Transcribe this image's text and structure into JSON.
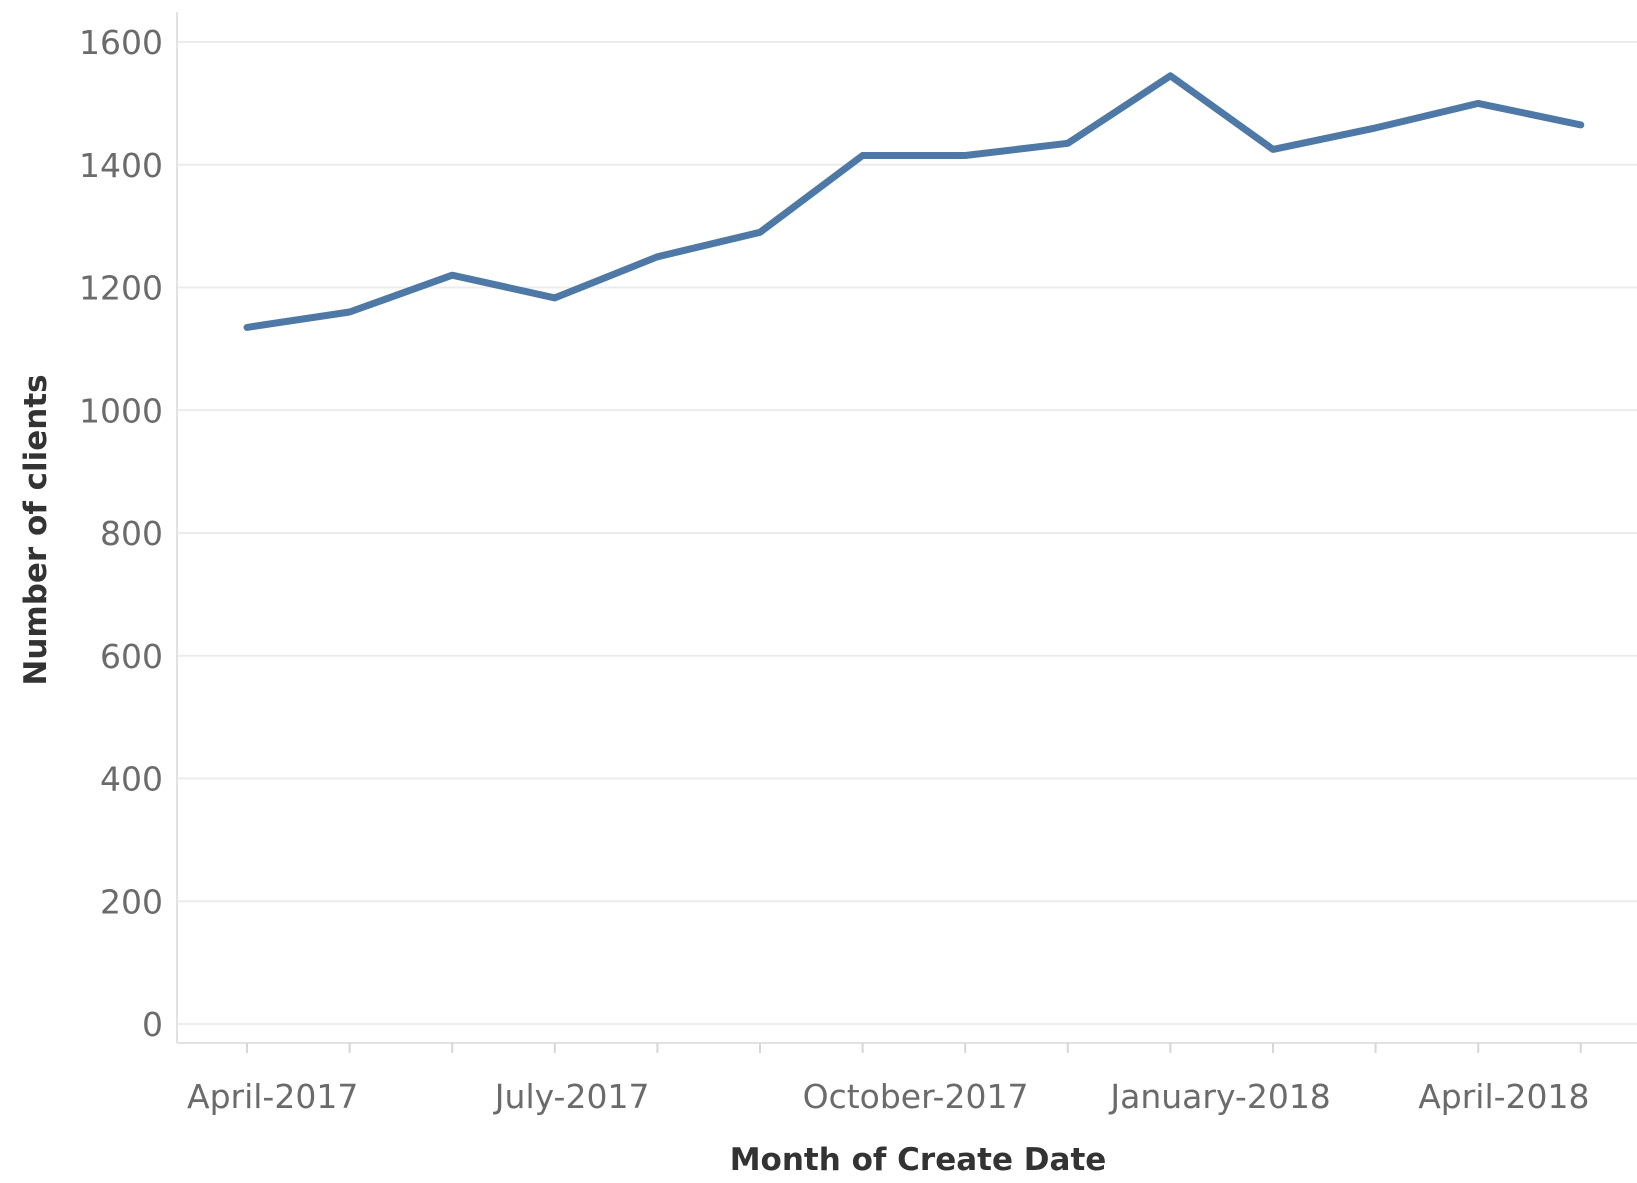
{
  "chart_data": {
    "type": "line",
    "xlabel": "Month of Create Date",
    "ylabel": "Number of clients",
    "x": [
      "2017-04",
      "2017-05",
      "2017-06",
      "2017-07",
      "2017-08",
      "2017-09",
      "2017-10",
      "2017-11",
      "2017-12",
      "2018-01",
      "2018-02",
      "2018-03",
      "2018-04",
      "2018-05"
    ],
    "x_tick_labels": [
      {
        "x": "2017-04",
        "label": "April-2017"
      },
      {
        "x": "2017-07",
        "label": "July-2017"
      },
      {
        "x": "2017-10",
        "label": "October-2017"
      },
      {
        "x": "2018-01",
        "label": "January-2018"
      },
      {
        "x": "2018-04",
        "label": "April-2018"
      }
    ],
    "y_ticks": [
      0,
      200,
      400,
      600,
      800,
      1000,
      1200,
      1400,
      1600
    ],
    "ylim": [
      0,
      1620
    ],
    "grid": true,
    "series": [
      {
        "values": [
          1135,
          1160,
          1220,
          1183,
          1250,
          1290,
          1415,
          1415,
          1435,
          1545,
          1425,
          1460,
          1500,
          1465
        ]
      }
    ],
    "colors": {
      "series": "#4e79a7"
    }
  }
}
